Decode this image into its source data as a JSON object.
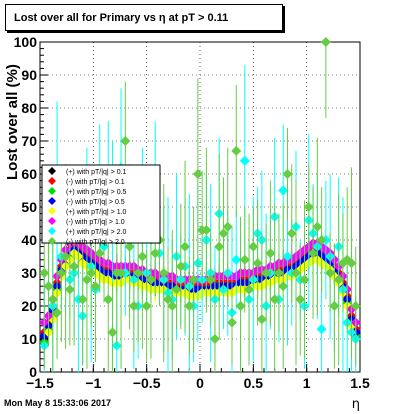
{
  "title": "Lost over all for Primary vs η at pT > 0.11",
  "footer": "Mon May  8 15:33:06 2017",
  "chart_data": {
    "type": "scatter",
    "xlabel": "η",
    "ylabel": "Lost over all (%)",
    "xlim": [
      -1.5,
      1.5
    ],
    "ylim": [
      0,
      100
    ],
    "grid": true,
    "legend_position": "left-middle",
    "x_ticks": [
      "−1.5",
      "−1",
      "−0.5",
      "0",
      "0.5",
      "1",
      "1.5"
    ],
    "y_ticks": [
      "0",
      "10",
      "20",
      "30",
      "40",
      "50",
      "60",
      "70",
      "80",
      "90",
      "100"
    ],
    "eta": [
      -1.46,
      -1.42,
      -1.38,
      -1.34,
      -1.3,
      -1.26,
      -1.22,
      -1.18,
      -1.14,
      -1.1,
      -1.06,
      -1.02,
      -0.98,
      -0.94,
      -0.9,
      -0.86,
      -0.82,
      -0.78,
      -0.74,
      -0.7,
      -0.66,
      -0.62,
      -0.58,
      -0.54,
      -0.5,
      -0.46,
      -0.42,
      -0.38,
      -0.34,
      -0.3,
      -0.26,
      -0.22,
      -0.18,
      -0.14,
      -0.1,
      -0.06,
      -0.02,
      0.02,
      0.06,
      0.1,
      0.14,
      0.18,
      0.22,
      0.26,
      0.3,
      0.34,
      0.38,
      0.42,
      0.46,
      0.5,
      0.54,
      0.58,
      0.62,
      0.66,
      0.7,
      0.74,
      0.78,
      0.82,
      0.86,
      0.9,
      0.94,
      0.98,
      1.02,
      1.06,
      1.1,
      1.14,
      1.18,
      1.22,
      1.26,
      1.3,
      1.34,
      1.38,
      1.42,
      1.46
    ],
    "series": [
      {
        "name": "(+) with pT/|q| > 0.1",
        "color": "#000000",
        "marker": "diamond",
        "y": [
          10,
          14,
          18,
          26,
          31,
          34,
          36,
          38,
          37,
          35,
          34,
          33,
          32,
          31,
          30,
          30,
          29,
          29,
          29,
          30,
          30,
          29,
          29,
          28,
          28,
          27,
          27,
          27,
          27,
          26,
          26,
          26,
          26,
          26,
          25,
          25,
          25,
          26,
          26,
          26,
          26,
          26,
          26,
          26,
          26,
          27,
          27,
          27,
          27,
          28,
          28,
          28,
          29,
          29,
          30,
          30,
          30,
          31,
          31,
          32,
          33,
          34,
          35,
          36,
          36,
          35,
          34,
          33,
          31,
          29,
          26,
          22,
          16,
          12
        ]
      },
      {
        "name": "(-) with pT/|q| > 0.1",
        "color": "#ff0000",
        "marker": "diamond",
        "y": [
          12,
          15,
          20,
          27,
          32,
          35,
          37,
          38,
          37,
          36,
          35,
          34,
          33,
          32,
          31,
          31,
          30,
          30,
          30,
          30,
          30,
          30,
          29,
          29,
          28,
          28,
          28,
          27,
          27,
          27,
          27,
          26,
          26,
          26,
          26,
          26,
          26,
          26,
          26,
          26,
          27,
          27,
          27,
          27,
          27,
          27,
          28,
          28,
          28,
          28,
          29,
          29,
          29,
          30,
          30,
          31,
          31,
          32,
          32,
          33,
          34,
          35,
          36,
          37,
          37,
          36,
          35,
          34,
          32,
          30,
          27,
          23,
          17,
          13
        ]
      },
      {
        "name": "(+) with pT/|q| > 0.5",
        "color": "#00dd00",
        "marker": "diamond",
        "y": [
          9,
          13,
          17,
          25,
          30,
          33,
          35,
          37,
          36,
          34,
          33,
          32,
          31,
          30,
          29,
          29,
          28,
          28,
          28,
          29,
          29,
          28,
          28,
          27,
          27,
          26,
          26,
          26,
          26,
          25,
          25,
          25,
          25,
          25,
          24,
          24,
          24,
          25,
          25,
          25,
          25,
          25,
          25,
          25,
          25,
          26,
          26,
          26,
          26,
          27,
          27,
          27,
          28,
          28,
          29,
          29,
          29,
          30,
          30,
          31,
          32,
          33,
          34,
          35,
          35,
          34,
          33,
          32,
          30,
          28,
          25,
          21,
          15,
          11
        ]
      },
      {
        "name": "(-) with pT/|q| > 0.5",
        "color": "#0000ff",
        "marker": "diamond",
        "y": [
          11,
          14,
          19,
          26,
          31,
          34,
          36,
          37,
          36,
          35,
          34,
          33,
          32,
          31,
          30,
          30,
          29,
          29,
          29,
          29,
          29,
          29,
          28,
          28,
          27,
          27,
          27,
          26,
          26,
          26,
          26,
          25,
          25,
          25,
          25,
          25,
          25,
          25,
          25,
          25,
          26,
          26,
          26,
          26,
          26,
          26,
          27,
          27,
          27,
          27,
          28,
          28,
          28,
          29,
          29,
          30,
          30,
          31,
          31,
          32,
          33,
          34,
          35,
          36,
          36,
          35,
          34,
          33,
          31,
          29,
          26,
          22,
          16,
          12
        ]
      },
      {
        "name": "(+) with pT/|q| > 1.0",
        "color": "#ffff00",
        "marker": "diamond",
        "y": [
          8,
          12,
          16,
          24,
          29,
          32,
          34,
          36,
          35,
          33,
          32,
          31,
          30,
          29,
          28,
          28,
          27,
          27,
          27,
          28,
          28,
          27,
          27,
          26,
          26,
          25,
          25,
          25,
          25,
          24,
          24,
          24,
          24,
          24,
          23,
          23,
          23,
          24,
          24,
          24,
          24,
          24,
          24,
          24,
          24,
          25,
          25,
          25,
          25,
          26,
          26,
          26,
          27,
          27,
          28,
          28,
          28,
          29,
          29,
          30,
          31,
          32,
          33,
          34,
          34,
          33,
          32,
          31,
          29,
          27,
          24,
          20,
          14,
          10
        ]
      },
      {
        "name": "(-) with pT/|q| > 1.0",
        "color": "#ff00ff",
        "marker": "diamond",
        "y": [
          15,
          17,
          22,
          29,
          34,
          37,
          39,
          40,
          39,
          38,
          37,
          36,
          35,
          34,
          33,
          33,
          32,
          32,
          32,
          32,
          32,
          32,
          31,
          31,
          30,
          30,
          30,
          29,
          29,
          29,
          29,
          28,
          28,
          28,
          28,
          28,
          28,
          28,
          28,
          28,
          29,
          29,
          29,
          29,
          29,
          29,
          30,
          30,
          30,
          30,
          31,
          31,
          31,
          32,
          32,
          33,
          33,
          34,
          34,
          35,
          36,
          37,
          38,
          39,
          39,
          38,
          37,
          36,
          34,
          32,
          29,
          25,
          19,
          15
        ]
      },
      {
        "name": "(+) with pT/|q| > 2.0",
        "color": "#00ffff",
        "marker": "diamond",
        "y": [
          8,
          26,
          20,
          55,
          35,
          40,
          28,
          30,
          22,
          17,
          46,
          32,
          25,
          50,
          38,
          55,
          42,
          8,
          62,
          30,
          42,
          28,
          20,
          45,
          30,
          40,
          50,
          36,
          28,
          24,
          22,
          35,
          28,
          32,
          26,
          20,
          33,
          28,
          40,
          30,
          22,
          48,
          25,
          30,
          18,
          34,
          20,
          64,
          22,
          28,
          42,
          40,
          20,
          30,
          47,
          22,
          55,
          35,
          30,
          44,
          28,
          20,
          46,
          42,
          38,
          13,
          40,
          35,
          20,
          38,
          25,
          15,
          12,
          10
        ]
      },
      {
        "name": "(-) with pT/|q| > 2.0",
        "color": "#66cc44",
        "marker": "diamond",
        "y": [
          30,
          26,
          22,
          18,
          30,
          35,
          25,
          32,
          42,
          22,
          28,
          30,
          26,
          36,
          40,
          22,
          12,
          30,
          30,
          70,
          38,
          20,
          30,
          35,
          20,
          28,
          36,
          40,
          30,
          22,
          20,
          25,
          32,
          38,
          20,
          28,
          60,
          43,
          43,
          28,
          10,
          38,
          42,
          44,
          15,
          67,
          20,
          34,
          25,
          38,
          33,
          16,
          30,
          36,
          22,
          30,
          26,
          60,
          42,
          30,
          22,
          28,
          50,
          36,
          44,
          40,
          100,
          30,
          20,
          28,
          33,
          34,
          33,
          20
        ]
      }
    ]
  }
}
